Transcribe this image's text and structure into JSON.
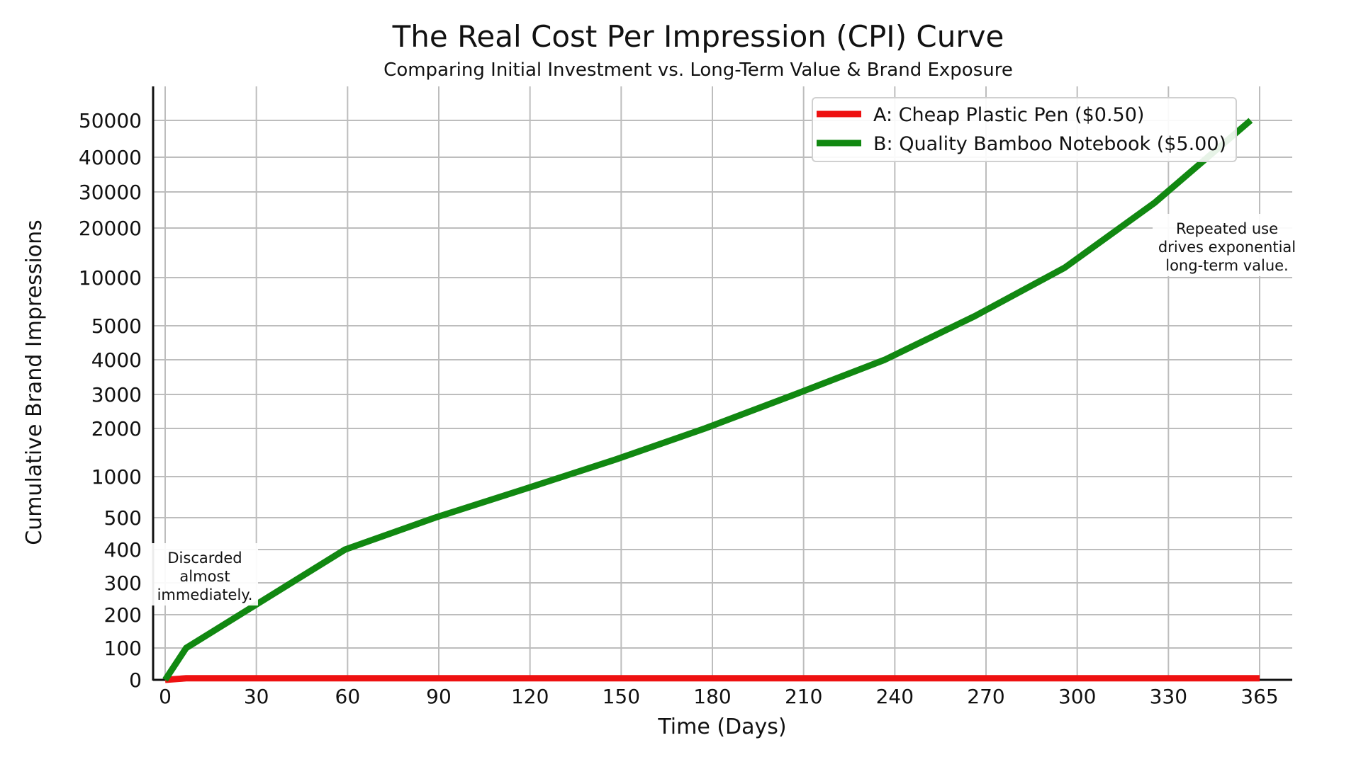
{
  "chart_data": {
    "type": "line",
    "title": "The Real Cost Per Impression (CPI) Curve",
    "subtitle": "Comparing Initial Investment vs. Long-Term Value & Brand Exposure",
    "xlabel": "Time (Days)",
    "ylabel": "Cumulative Brand Impressions",
    "x_ticks": [
      "0",
      "30",
      "60",
      "90",
      "120",
      "150",
      "180",
      "210",
      "240",
      "270",
      "300",
      "330",
      "365"
    ],
    "y_ticks": [
      "0",
      "100",
      "200",
      "300",
      "400",
      "500",
      "1000",
      "2000",
      "3000",
      "4000",
      "5000",
      "10000",
      "20000",
      "30000",
      "40000",
      "50000"
    ],
    "xlim": [
      0,
      365
    ],
    "ylim": [
      0,
      50000
    ],
    "grid": true,
    "legend_position": "top-right",
    "series": [
      {
        "name": "A: Cheap Plastic Pen ($0.50)",
        "color": "#ee1111",
        "x": [
          0,
          7,
          365
        ],
        "y": [
          0,
          5,
          5
        ]
      },
      {
        "name": "B: Quality Bamboo Notebook ($5.00)",
        "color": "#118811",
        "x": [
          0,
          7,
          60,
          90,
          120,
          150,
          180,
          210,
          240,
          270,
          300,
          330,
          362
        ],
        "y": [
          0,
          100,
          400,
          500,
          850,
          1350,
          2000,
          3000,
          4000,
          6000,
          12000,
          27000,
          50000
        ]
      }
    ],
    "annotations": [
      {
        "text": [
          "Discarded",
          "almost",
          "immediately."
        ],
        "near_x": 10,
        "near_y": 300
      },
      {
        "text": [
          "Repeated use",
          "drives exponential",
          "long-term value."
        ],
        "near_x": 340,
        "near_y": 10000
      }
    ]
  }
}
